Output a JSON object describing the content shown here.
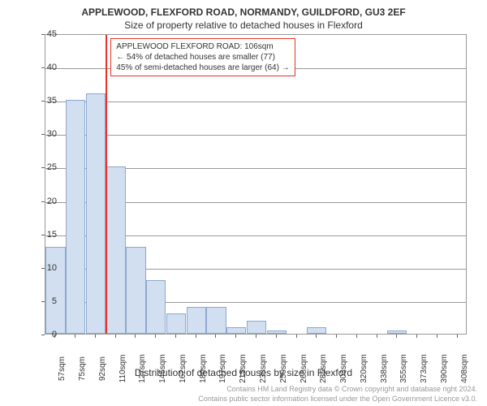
{
  "chart": {
    "type": "histogram",
    "title_main": "APPLEWOOD, FLEXFORD ROAD, NORMANDY, GUILDFORD, GU3 2EF",
    "title_sub": "Size of property relative to detached houses in Flexford",
    "y_axis_label": "Number of detached properties",
    "x_axis_label": "Distribution of detached houses by size in Flexford",
    "footer_1": "Contains HM Land Registry data © Crown copyright and database right 2024.",
    "footer_2": "Contains public sector information licensed under the Open Government Licence v3.0.",
    "ylim": [
      0,
      45
    ],
    "ytick_step": 5,
    "bar_color": "#d1dff0",
    "bar_border": "#8ca8ce",
    "grid_color": "#999999",
    "background_color": "#ffffff",
    "ref_line_color": "#ee3124",
    "ref_line_x_category_index": 3,
    "annotation": {
      "border_color": "#ee3124",
      "text_color": "#333333",
      "line1": "APPLEWOOD FLEXFORD ROAD: 106sqm",
      "line2": "← 54% of detached houses are smaller (77)",
      "line3": "45% of semi-detached houses are larger (64) →"
    },
    "categories": [
      "57sqm",
      "75sqm",
      "92sqm",
      "110sqm",
      "127sqm",
      "145sqm",
      "162sqm",
      "180sqm",
      "197sqm",
      "215sqm",
      "233sqm",
      "250sqm",
      "268sqm",
      "285sqm",
      "303sqm",
      "320sqm",
      "338sqm",
      "355sqm",
      "373sqm",
      "390sqm",
      "408sqm"
    ],
    "values": [
      13,
      35,
      36,
      25,
      13,
      8,
      3,
      4,
      4,
      1,
      2,
      0.5,
      0,
      1,
      0,
      0,
      0,
      0.5,
      0,
      0,
      0
    ]
  }
}
